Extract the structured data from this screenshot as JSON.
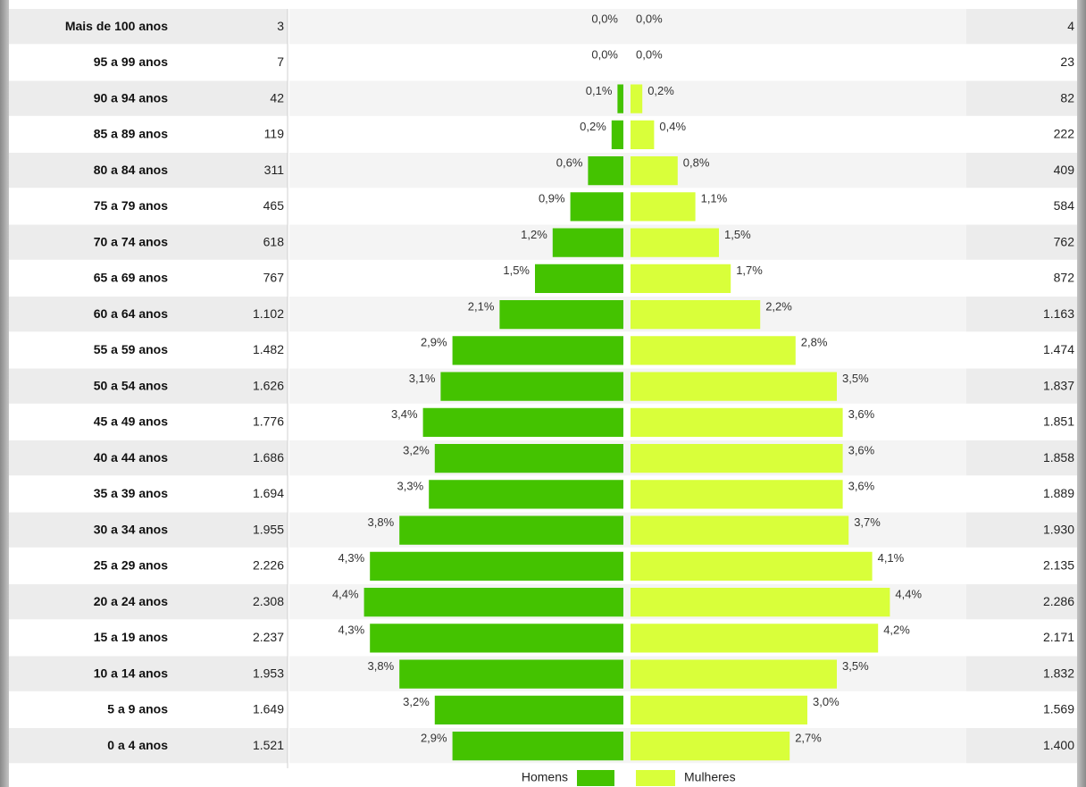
{
  "chart_data": {
    "type": "pyramid",
    "categories": [
      "Mais de 100 anos",
      "95 a 99 anos",
      "90 a 94 anos",
      "85 a 89 anos",
      "80 a 84 anos",
      "75 a 79 anos",
      "70 a 74 anos",
      "65 a 69 anos",
      "60 a 64 anos",
      "55 a 59 anos",
      "50 a 54 anos",
      "45 a 49 anos",
      "40 a 44 anos",
      "35 a 39 anos",
      "30 a 34 anos",
      "25 a 29 anos",
      "20 a 24 anos",
      "15 a 19 anos",
      "10 a 14 anos",
      "5 a 9 anos",
      "0 a 4 anos"
    ],
    "series": [
      {
        "name": "Homens",
        "color": "#44c300",
        "values": [
          0.0,
          0.0,
          0.1,
          0.2,
          0.6,
          0.9,
          1.2,
          1.5,
          2.1,
          2.9,
          3.1,
          3.4,
          3.2,
          3.3,
          3.8,
          4.3,
          4.4,
          4.3,
          3.8,
          3.2,
          2.9
        ],
        "value_labels": [
          "0,0%",
          "0,0%",
          "0,1%",
          "0,2%",
          "0,6%",
          "0,9%",
          "1,2%",
          "1,5%",
          "2,1%",
          "2,9%",
          "3,1%",
          "3,4%",
          "3,2%",
          "3,3%",
          "3,8%",
          "4,3%",
          "4,4%",
          "4,3%",
          "3,8%",
          "3,2%",
          "2,9%"
        ],
        "counts": [
          3,
          7,
          42,
          119,
          311,
          465,
          618,
          767,
          1102,
          1482,
          1626,
          1776,
          1686,
          1694,
          1955,
          2226,
          2308,
          2237,
          1953,
          1649,
          1521
        ],
        "count_labels": [
          "3",
          "7",
          "42",
          "119",
          "311",
          "465",
          "618",
          "767",
          "1.102",
          "1.482",
          "1.626",
          "1.776",
          "1.686",
          "1.694",
          "1.955",
          "2.226",
          "2.308",
          "2.237",
          "1.953",
          "1.649",
          "1.521"
        ]
      },
      {
        "name": "Mulheres",
        "color": "#d9ff3a",
        "values": [
          0.0,
          0.0,
          0.2,
          0.4,
          0.8,
          1.1,
          1.5,
          1.7,
          2.2,
          2.8,
          3.5,
          3.6,
          3.6,
          3.6,
          3.7,
          4.1,
          4.4,
          4.2,
          3.5,
          3.0,
          2.7
        ],
        "value_labels": [
          "0,0%",
          "0,0%",
          "0,2%",
          "0,4%",
          "0,8%",
          "1,1%",
          "1,5%",
          "1,7%",
          "2,2%",
          "2,8%",
          "3,5%",
          "3,6%",
          "3,6%",
          "3,6%",
          "3,7%",
          "4,1%",
          "4,4%",
          "4,2%",
          "3,5%",
          "3,0%",
          "2,7%"
        ],
        "counts": [
          4,
          23,
          82,
          222,
          409,
          584,
          762,
          872,
          1163,
          1474,
          1837,
          1851,
          1858,
          1889,
          1930,
          2135,
          2286,
          2171,
          1832,
          1569,
          1400
        ],
        "count_labels": [
          "4",
          "23",
          "82",
          "222",
          "409",
          "584",
          "762",
          "872",
          "1.163",
          "1.474",
          "1.837",
          "1.851",
          "1.858",
          "1.889",
          "1.930",
          "2.135",
          "2.286",
          "2.171",
          "1.832",
          "1.569",
          "1.400"
        ]
      }
    ]
  }
}
